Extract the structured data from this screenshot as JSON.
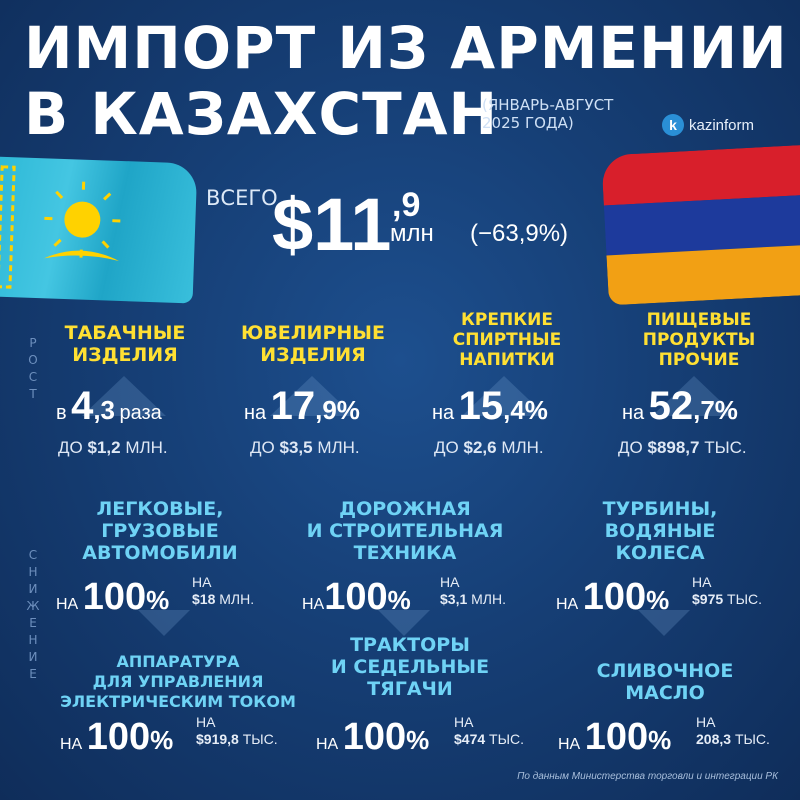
{
  "header": {
    "title_line1": "ИМПОРТ ИЗ АРМЕНИИ",
    "title_line2": "В КАЗАХСТАН",
    "period_line1": "(ЯНВАРЬ-АВГУСТ",
    "period_line2": "2025 ГОДА)",
    "logo_text": "kazinform",
    "logo_mark": "k"
  },
  "total": {
    "label": "ВСЕГО",
    "value": "$11",
    "decimal": ",9",
    "unit": "млн",
    "change": "(−63,9%)"
  },
  "side_labels": {
    "growth": "РОСТ",
    "decline": "СНИЖЕНИЕ"
  },
  "growth": [
    {
      "category": "ТАБАЧНЫЕ ИЗДЕЛИЯ",
      "line1": "ТАБАЧНЫЕ",
      "line2": "ИЗДЕЛИЯ",
      "prefix": "в",
      "value": "4",
      "decimal": ",3",
      "suffix": "раза",
      "sub_prefix": "ДО",
      "sub_value": "$1,2",
      "sub_unit": "МЛН."
    },
    {
      "category": "ЮВЕЛИРНЫЕ ИЗДЕЛИЯ",
      "line1": "ЮВЕЛИРНЫЕ",
      "line2": "ИЗДЕЛИЯ",
      "prefix": "на",
      "value": "17",
      "decimal": ",9%",
      "suffix": "",
      "sub_prefix": "ДО",
      "sub_value": "$3,5",
      "sub_unit": "МЛН."
    },
    {
      "category": "КРЕПКИЕ СПИРТНЫЕ НАПИТКИ",
      "line1": "КРЕПКИЕ",
      "line2": "СПИРТНЫЕ",
      "line3": "НАПИТКИ",
      "prefix": "на",
      "value": "15",
      "decimal": ",4%",
      "suffix": "",
      "sub_prefix": "ДО",
      "sub_value": "$2,6",
      "sub_unit": "МЛН."
    },
    {
      "category": "ПИЩЕВЫЕ ПРОДУКТЫ ПРОЧИЕ",
      "line1": "ПИЩЕВЫЕ",
      "line2": "ПРОДУКТЫ",
      "line3": "ПРОЧИЕ",
      "prefix": "на",
      "value": "52",
      "decimal": ",7%",
      "suffix": "",
      "sub_prefix": "ДО",
      "sub_value": "$898,7",
      "sub_unit": "ТЫС."
    }
  ],
  "decline": [
    {
      "line1": "ЛЕГКОВЫЕ,",
      "line2": "ГРУЗОВЫЕ",
      "line3": "АВТОМОБИЛИ",
      "prefix": "НА",
      "value": "100",
      "pct": "%",
      "side_prefix": "НА",
      "side_value": "$18",
      "side_unit": "МЛН."
    },
    {
      "line1": "ДОРОЖНАЯ",
      "line2": "И СТРОИТЕЛЬНАЯ",
      "line3": "ТЕХНИКА",
      "prefix": "НА",
      "value": "100",
      "pct": "%",
      "side_prefix": "НА",
      "side_value": "$3,1",
      "side_unit": "МЛН."
    },
    {
      "line1": "ТУРБИНЫ,",
      "line2": "ВОДЯНЫЕ",
      "line3": "КОЛЕСА",
      "prefix": "НА",
      "value": "100",
      "pct": "%",
      "side_prefix": "НА",
      "side_value": "$975",
      "side_unit": "ТЫС."
    },
    {
      "line1": "АППАРАТУРА",
      "line2": "ДЛЯ УПРАВЛЕНИЯ",
      "line3": "ЭЛЕКТРИЧЕСКИМ ТОКОМ",
      "prefix": "НА",
      "value": "100",
      "pct": "%",
      "side_prefix": "НА",
      "side_value": "$919,8",
      "side_unit": "ТЫС."
    },
    {
      "line1": "ТРАКТОРЫ",
      "line2": "И СЕДЕЛЬНЫЕ",
      "line3": "ТЯГАЧИ",
      "prefix": "НА",
      "value": "100",
      "pct": "%",
      "side_prefix": "НА",
      "side_value": "$474",
      "side_unit": "ТЫС."
    },
    {
      "line1": "СЛИВОЧНОЕ",
      "line2": "МАСЛО",
      "line3": "",
      "prefix": "НА",
      "value": "100",
      "pct": "%",
      "side_prefix": "НА",
      "side_value": "208,3",
      "side_unit": "ТЫС."
    }
  ],
  "source": "По данным Министерства торговли и интеграции РК",
  "colors": {
    "background": "#163f76",
    "growth_title": "#ffe033",
    "decline_title": "#6fd3f5",
    "kz_flag": "#2cb8d6",
    "am_red": "#d81f2b",
    "am_blue": "#1d3a9c",
    "am_orange": "#f2a014"
  }
}
